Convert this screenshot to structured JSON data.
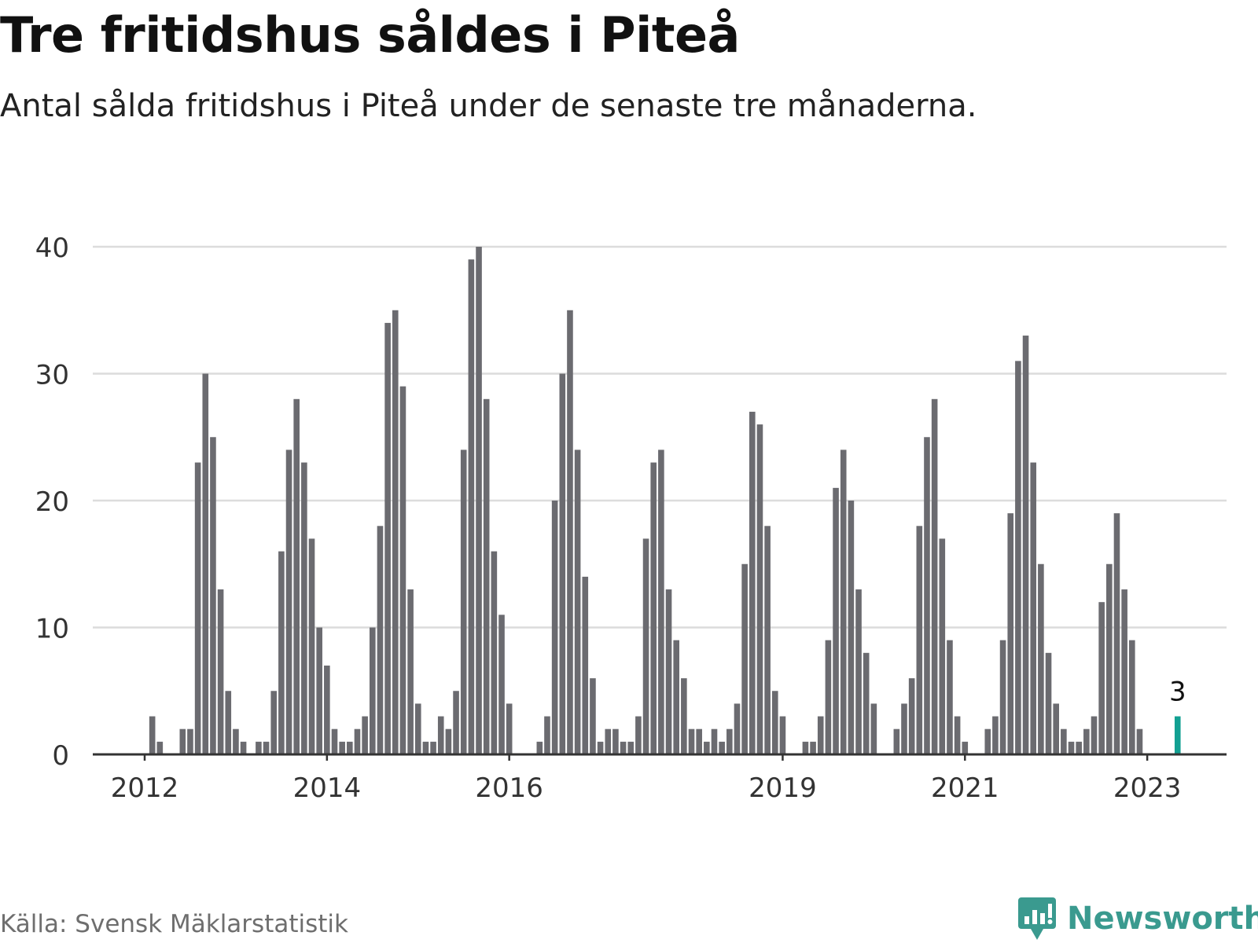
{
  "header": {
    "title": "Tre fritidshus såldes i Piteå",
    "subtitle": "Antal sålda fritidshus i Piteå under de senaste tre månaderna."
  },
  "footer": {
    "source": "Källa: Svensk Mäklarstatistik",
    "brand": "Newsworthy",
    "brand_icon": "bar-chart-speech-bubble-icon"
  },
  "colors": {
    "bar": "#6b6b70",
    "highlight": "#12a092",
    "grid": "#dcdcdc",
    "axis": "#333333",
    "brand": "#3a9a8f"
  },
  "chart_data": {
    "type": "bar",
    "title": "Tre fritidshus såldes i Piteå",
    "subtitle": "Antal sålda fritidshus i Piteå under de senaste tre månaderna.",
    "ylim": [
      0,
      40
    ],
    "yticks": [
      0,
      10,
      20,
      30,
      40
    ],
    "grid": true,
    "xaxis": {
      "min_month_index": 0,
      "max_month_index": 150
    },
    "xticks": [
      {
        "label": "2012",
        "month_index": 6
      },
      {
        "label": "2014",
        "month_index": 30
      },
      {
        "label": "2016",
        "month_index": 54
      },
      {
        "label": "2019",
        "month_index": 90
      },
      {
        "label": "2021",
        "month_index": 114
      },
      {
        "label": "2023",
        "month_index": 138
      }
    ],
    "series": [
      {
        "values": [
          [
            7,
            3
          ],
          [
            8,
            1
          ],
          [
            11,
            2
          ],
          [
            12,
            2
          ],
          [
            13,
            23
          ],
          [
            14,
            30
          ],
          [
            15,
            25
          ],
          [
            16,
            13
          ],
          [
            17,
            5
          ],
          [
            18,
            2
          ],
          [
            19,
            1
          ],
          [
            21,
            1
          ],
          [
            22,
            1
          ],
          [
            23,
            5
          ],
          [
            24,
            16
          ],
          [
            25,
            24
          ],
          [
            26,
            28
          ],
          [
            27,
            23
          ],
          [
            28,
            17
          ],
          [
            29,
            10
          ],
          [
            30,
            7
          ],
          [
            31,
            2
          ],
          [
            32,
            1
          ],
          [
            33,
            1
          ],
          [
            34,
            2
          ],
          [
            35,
            3
          ],
          [
            36,
            10
          ],
          [
            37,
            18
          ],
          [
            38,
            34
          ],
          [
            39,
            35
          ],
          [
            40,
            29
          ],
          [
            41,
            13
          ],
          [
            42,
            4
          ],
          [
            43,
            1
          ],
          [
            44,
            1
          ],
          [
            45,
            3
          ],
          [
            46,
            2
          ],
          [
            47,
            5
          ],
          [
            48,
            24
          ],
          [
            49,
            39
          ],
          [
            50,
            40
          ],
          [
            51,
            28
          ],
          [
            52,
            16
          ],
          [
            53,
            11
          ],
          [
            54,
            4
          ],
          [
            58,
            1
          ],
          [
            59,
            3
          ],
          [
            60,
            20
          ],
          [
            61,
            30
          ],
          [
            62,
            35
          ],
          [
            63,
            24
          ],
          [
            64,
            14
          ],
          [
            65,
            6
          ],
          [
            66,
            1
          ],
          [
            67,
            2
          ],
          [
            68,
            2
          ],
          [
            69,
            1
          ],
          [
            70,
            1
          ],
          [
            71,
            3
          ],
          [
            72,
            17
          ],
          [
            73,
            23
          ],
          [
            74,
            24
          ],
          [
            75,
            13
          ],
          [
            76,
            9
          ],
          [
            77,
            6
          ],
          [
            78,
            2
          ],
          [
            79,
            2
          ],
          [
            80,
            1
          ],
          [
            81,
            2
          ],
          [
            82,
            1
          ],
          [
            83,
            2
          ],
          [
            84,
            4
          ],
          [
            85,
            15
          ],
          [
            86,
            27
          ],
          [
            87,
            26
          ],
          [
            88,
            18
          ],
          [
            89,
            5
          ],
          [
            90,
            3
          ],
          [
            93,
            1
          ],
          [
            94,
            1
          ],
          [
            95,
            3
          ],
          [
            96,
            9
          ],
          [
            97,
            21
          ],
          [
            98,
            24
          ],
          [
            99,
            20
          ],
          [
            100,
            13
          ],
          [
            101,
            8
          ],
          [
            102,
            4
          ],
          [
            105,
            2
          ],
          [
            106,
            4
          ],
          [
            107,
            6
          ],
          [
            108,
            18
          ],
          [
            109,
            25
          ],
          [
            110,
            28
          ],
          [
            111,
            17
          ],
          [
            112,
            9
          ],
          [
            113,
            3
          ],
          [
            114,
            1
          ],
          [
            117,
            2
          ],
          [
            118,
            3
          ],
          [
            119,
            9
          ],
          [
            120,
            19
          ],
          [
            121,
            31
          ],
          [
            122,
            33
          ],
          [
            123,
            23
          ],
          [
            124,
            15
          ],
          [
            125,
            8
          ],
          [
            126,
            4
          ],
          [
            127,
            2
          ],
          [
            128,
            1
          ],
          [
            129,
            1
          ],
          [
            130,
            2
          ],
          [
            131,
            3
          ],
          [
            132,
            12
          ],
          [
            133,
            15
          ],
          [
            134,
            19
          ],
          [
            135,
            13
          ],
          [
            136,
            9
          ],
          [
            137,
            2
          ]
        ]
      },
      {
        "highlight": true,
        "values": [
          [
            142,
            3
          ]
        ],
        "label": "3"
      }
    ]
  }
}
